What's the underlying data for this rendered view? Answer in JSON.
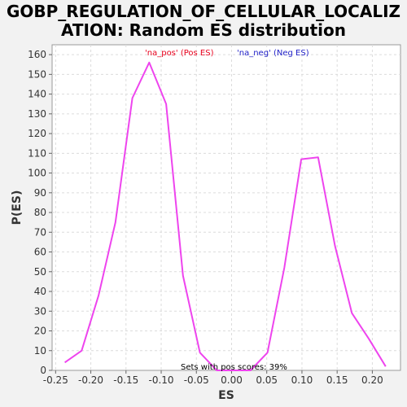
{
  "chart_data": {
    "type": "line",
    "title_lines": [
      "GOBP_REGULATION_OF_CELLULAR_LOCALIZ",
      "ATION: Random ES distribution"
    ],
    "xlabel": "ES",
    "ylabel": "P(ES)",
    "xlim": [
      -0.255,
      0.24
    ],
    "ylim": [
      0,
      165
    ],
    "x_ticks": [
      -0.25,
      -0.2,
      -0.15,
      -0.1,
      -0.05,
      0.0,
      0.05,
      0.1,
      0.15,
      0.2
    ],
    "x_tick_labels": [
      "-0.25",
      "-0.20",
      "-0.15",
      "-0.10",
      "-0.05",
      "0.00",
      "0.05",
      "0.10",
      "0.15",
      "0.20"
    ],
    "y_ticks": [
      0,
      10,
      20,
      30,
      40,
      50,
      60,
      70,
      80,
      90,
      100,
      110,
      120,
      130,
      140,
      150,
      160
    ],
    "grid": true,
    "legend": [
      {
        "label": "'na_pos' (Pos ES)",
        "color": "#e8001c"
      },
      {
        "label": "'na_neg' (Neg ES)",
        "color": "#1f1fc8"
      }
    ],
    "annotation": "Sets with pos scores: 39%",
    "series": [
      {
        "color": "#ee44ee",
        "x": [
          -0.237,
          -0.213,
          -0.189,
          -0.165,
          -0.141,
          -0.117,
          -0.093,
          -0.069,
          -0.045,
          -0.021,
          0.003,
          0.027,
          0.051,
          0.075,
          0.099,
          0.123,
          0.147,
          0.171,
          0.195,
          0.219
        ],
        "y": [
          4,
          10,
          38,
          75,
          138,
          156,
          135,
          48,
          9,
          0,
          0,
          0,
          9,
          52,
          107,
          108,
          63,
          29,
          16,
          2
        ]
      }
    ]
  }
}
